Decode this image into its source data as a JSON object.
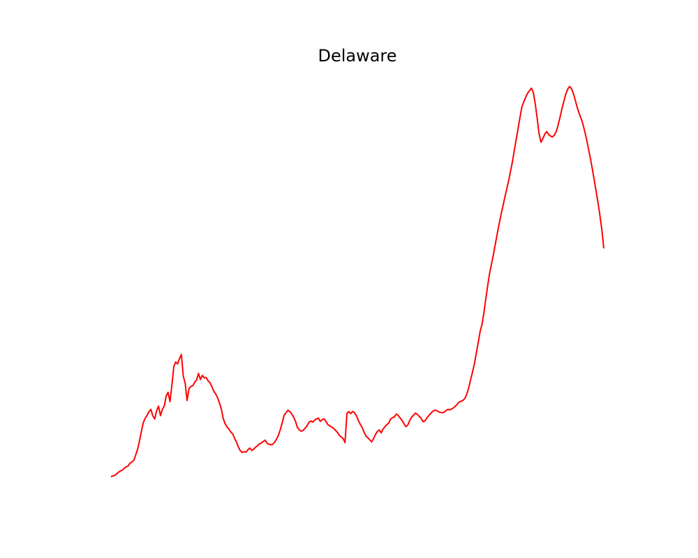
{
  "chart_data": {
    "type": "line",
    "title": "Delaware",
    "xlabel": "",
    "ylabel": "",
    "axes_visible": false,
    "grid": false,
    "series": [
      {
        "color": "#ff0000",
        "values": [
          0.1,
          0.3,
          0.4,
          0.8,
          1.2,
          1.5,
          1.7,
          2.2,
          2.5,
          2.7,
          3.4,
          3.7,
          4.1,
          5.4,
          6.8,
          8.9,
          11.2,
          13.3,
          14.4,
          15.1,
          16.0,
          16.5,
          14.9,
          14.2,
          16.2,
          17.3,
          15.0,
          16.5,
          17.3,
          19.8,
          20.7,
          18.4,
          22.3,
          26.9,
          28.1,
          27.6,
          28.9,
          29.9,
          24.6,
          22.9,
          18.7,
          21.6,
          22.1,
          22.3,
          23.1,
          23.7,
          25.3,
          23.8,
          24.8,
          24.2,
          24.3,
          23.5,
          23.1,
          22.1,
          21.0,
          20.3,
          19.4,
          18.1,
          16.6,
          14.3,
          13.0,
          12.2,
          11.7,
          11.0,
          10.5,
          9.4,
          8.5,
          7.3,
          6.4,
          6.0,
          6.2,
          6.1,
          6.7,
          7.1,
          6.5,
          6.8,
          7.3,
          7.6,
          8.1,
          8.3,
          8.7,
          9.0,
          8.3,
          8.0,
          7.9,
          8.0,
          8.5,
          9.3,
          10.2,
          11.6,
          13.2,
          15.1,
          15.7,
          16.3,
          16.0,
          15.4,
          14.6,
          13.6,
          12.1,
          11.5,
          11.2,
          11.4,
          11.9,
          12.5,
          13.3,
          13.7,
          13.4,
          13.9,
          14.2,
          14.4,
          13.6,
          14.0,
          14.2,
          13.6,
          12.8,
          12.5,
          12.2,
          11.9,
          11.4,
          10.9,
          10.2,
          9.8,
          9.4,
          8.4,
          15.5,
          16.0,
          15.5,
          16.0,
          15.7,
          15.0,
          13.8,
          12.9,
          12.1,
          11.0,
          10.0,
          9.6,
          9.1,
          8.6,
          9.4,
          10.4,
          11.1,
          11.5,
          10.8,
          11.7,
          12.3,
          12.8,
          13.2,
          14.2,
          14.5,
          14.7,
          15.4,
          15.0,
          14.4,
          13.8,
          13.0,
          12.3,
          12.7,
          13.8,
          14.6,
          15.1,
          15.6,
          15.3,
          14.8,
          14.4,
          13.5,
          13.7,
          14.4,
          15.0,
          15.5,
          16.0,
          16.3,
          16.3,
          16.0,
          15.8,
          15.7,
          15.8,
          16.2,
          16.5,
          16.4,
          16.6,
          16.9,
          17.3,
          17.8,
          18.3,
          18.5,
          18.7,
          19.2,
          20.2,
          21.8,
          23.7,
          25.6,
          27.6,
          30.2,
          32.8,
          35.5,
          37.2,
          40.1,
          43.5,
          46.7,
          49.7,
          52.0,
          54.3,
          56.8,
          59.4,
          61.8,
          64.0,
          66.1,
          68.3,
          70.3,
          72.3,
          74.6,
          77.0,
          79.8,
          82.4,
          85.1,
          87.9,
          90.4,
          91.6,
          92.7,
          93.7,
          94.3,
          94.9,
          93.8,
          91.0,
          87.6,
          83.8,
          81.7,
          82.6,
          83.7,
          84.3,
          83.6,
          83.2,
          83.0,
          83.4,
          84.3,
          85.9,
          87.8,
          89.8,
          91.7,
          93.4,
          94.6,
          95.3,
          94.8,
          93.6,
          92.0,
          90.3,
          88.8,
          87.6,
          86.2,
          84.4,
          82.3,
          80.0,
          77.7,
          75.2,
          72.4,
          69.7,
          66.9,
          63.8,
          60.3,
          55.8
        ]
      }
    ]
  }
}
